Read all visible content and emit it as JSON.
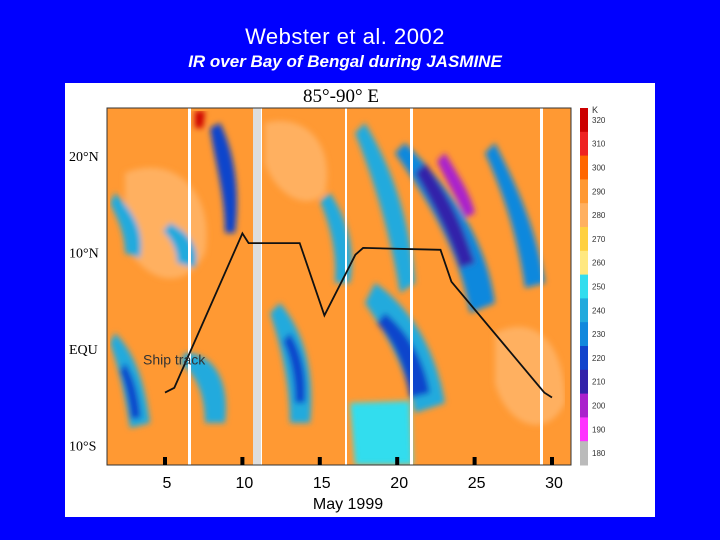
{
  "slide": {
    "title": "Webster et al. 2002",
    "subtitle": "IR over Bay of Bengal during JASMINE"
  },
  "chart_data": {
    "type": "heatmap",
    "title": "85°-90° E",
    "xlabel": "May 1999",
    "x_ticks": [
      "5",
      "10",
      "15",
      "20",
      "25",
      "30"
    ],
    "x_tick_values": [
      5,
      10,
      15,
      20,
      25,
      30
    ],
    "xlim": [
      5,
      30
    ],
    "y_ticks": [
      "20°N",
      "10°N",
      "EQU",
      "10°S"
    ],
    "y_tick_values": [
      20,
      10,
      0,
      -10
    ],
    "ylim": [
      -12,
      25
    ],
    "colorbar": {
      "unit": "K",
      "levels": [
        320,
        310,
        300,
        290,
        280,
        270,
        260,
        250,
        240,
        230,
        220,
        210,
        200,
        190,
        180
      ],
      "colors": [
        "#cc0000",
        "#ee2222",
        "#ff6600",
        "#ff9933",
        "#ffb060",
        "#ffd040",
        "#ffe880",
        "#33ddee",
        "#22aadd",
        "#1188dd",
        "#1144cc",
        "#3322aa",
        "#aa22cc",
        "#ff33ff",
        "#bbbbbb"
      ]
    },
    "annotation": "Ship track",
    "ship_track": [
      {
        "x": 5.0,
        "y": -4.5
      },
      {
        "x": 5.6,
        "y": -4.0
      },
      {
        "x": 10.0,
        "y": 12.0
      },
      {
        "x": 10.4,
        "y": 11.0
      },
      {
        "x": 13.7,
        "y": 11.0
      },
      {
        "x": 15.3,
        "y": 3.5
      },
      {
        "x": 17.3,
        "y": 9.8
      },
      {
        "x": 17.8,
        "y": 10.5
      },
      {
        "x": 22.8,
        "y": 10.3
      },
      {
        "x": 23.5,
        "y": 7.0
      },
      {
        "x": 29.5,
        "y": -4.5
      },
      {
        "x": 30.0,
        "y": -5.0
      }
    ]
  }
}
